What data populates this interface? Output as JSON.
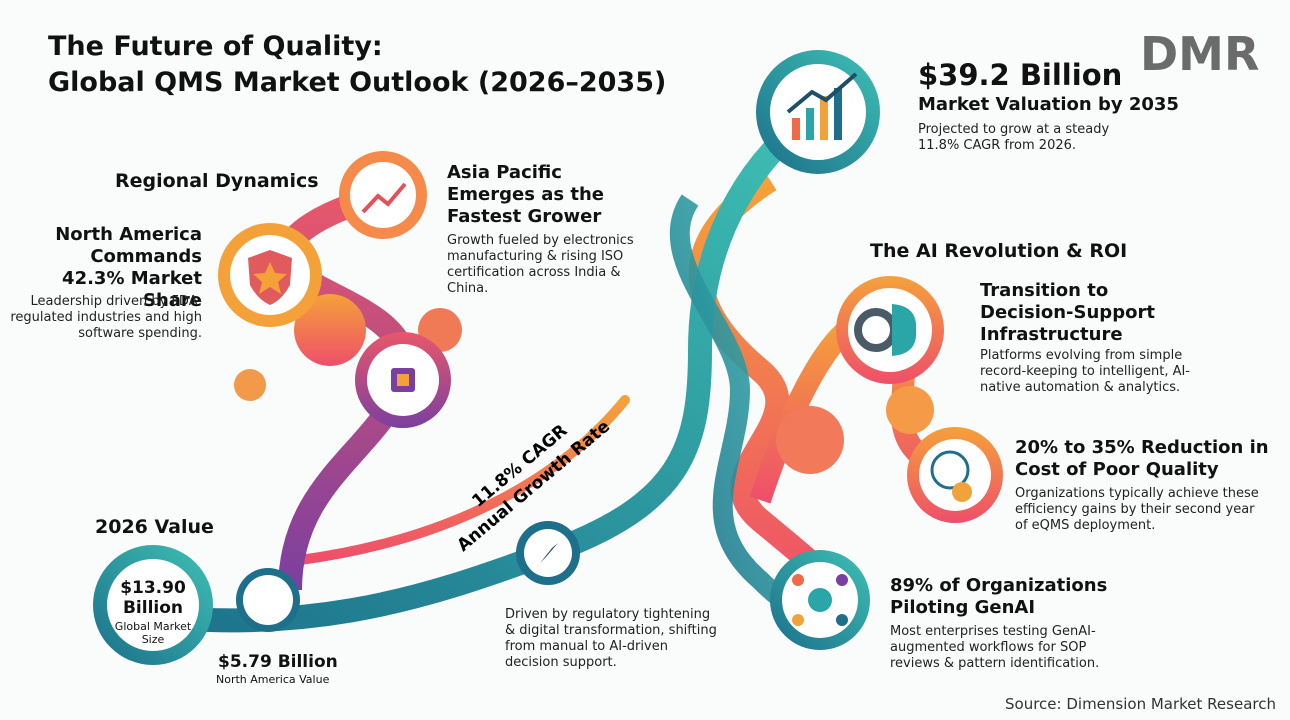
{
  "header": {
    "title_line1": "The Future of Quality:",
    "title_line2": "Global QMS Market Outlook (2026–2035)",
    "logo": "DMR"
  },
  "valuation": {
    "headline": "$39.2 Billion",
    "subhead": "Market Valuation by 2035",
    "text": "Projected to grow at a steady 11.8% CAGR from 2026."
  },
  "regional": {
    "title": "Regional Dynamics",
    "north_america": {
      "headline": "North America Commands 42.3% Market Share",
      "text": "Leadership driven by FDA-regulated industries and high software spending."
    },
    "asia_pacific": {
      "headline": "Asia Pacific Emerges as the Fastest Grower",
      "text": "Growth fueled by electronics manufacturing & rising ISO certification across India & China."
    }
  },
  "ai": {
    "title": "The AI Revolution & ROI",
    "items": [
      {
        "headline": "Transition to Decision-Support Infrastructure",
        "text": "Platforms evolving from simple record-keeping to intelligent, AI-native automation & analytics."
      },
      {
        "headline": "20% to 35% Reduction in Cost of Poor Quality",
        "text": "Organizations typically achieve these efficiency gains by their second year of eQMS deployment."
      },
      {
        "headline": "89% of Organizations Piloting GenAI",
        "text": "Most enterprises testing GenAI-augmented workflows for SOP reviews & pattern identification."
      }
    ]
  },
  "growth": {
    "cagr": "11.8% CAGR",
    "cagr_label": "Annual Growth Rate",
    "driver_text": "Driven by regulatory tightening & digital transformation, shifting from manual to AI-driven decision support."
  },
  "base": {
    "title": "2026 Value",
    "value": "$13.90 Billion",
    "value_label": "Global Market Size",
    "na_value": "$5.79 Billion",
    "na_label": "North America Value"
  },
  "source": "Source: Dimension Market Research"
}
